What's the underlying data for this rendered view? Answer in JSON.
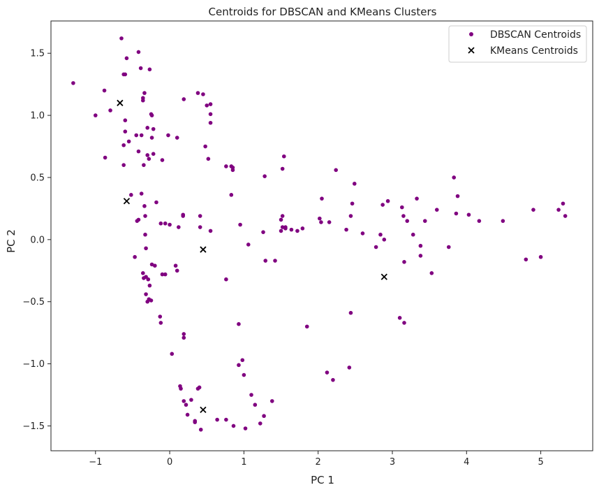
{
  "chart_data": {
    "type": "scatter",
    "title": "Centroids for DBSCAN and KMeans Clusters",
    "xlabel": "PC 1",
    "ylabel": "PC 2",
    "xlim": [
      -1.6,
      5.7
    ],
    "ylim": [
      -1.7,
      1.76
    ],
    "grid": false,
    "legend_position": "top-right",
    "x_ticks": [
      -1,
      0,
      1,
      2,
      3,
      4,
      5
    ],
    "x_tick_labels": [
      "−1",
      "0",
      "1",
      "2",
      "3",
      "4",
      "5"
    ],
    "y_ticks": [
      -1.5,
      -1.0,
      -0.5,
      0.0,
      0.5,
      1.0,
      1.5
    ],
    "y_tick_labels": [
      "−1.5",
      "−1.0",
      "−0.5",
      "0.0",
      "0.5",
      "1.0",
      "1.5"
    ],
    "series": [
      {
        "name": "DBSCAN Centroids",
        "marker": "circle",
        "color": "#800080",
        "points": [
          [
            -1.3,
            1.26
          ],
          [
            -1.0,
            1.0
          ],
          [
            -0.88,
            1.2
          ],
          [
            -0.8,
            1.04
          ],
          [
            -0.87,
            0.66
          ],
          [
            -0.65,
            1.62
          ],
          [
            -0.58,
            1.46
          ],
          [
            -0.62,
            1.33
          ],
          [
            -0.6,
            1.33
          ],
          [
            -0.42,
            1.51
          ],
          [
            -0.39,
            1.38
          ],
          [
            -0.27,
            1.37
          ],
          [
            -0.36,
            1.12
          ],
          [
            -0.36,
            1.14
          ],
          [
            -0.34,
            1.18
          ],
          [
            -0.25,
            1.01
          ],
          [
            -0.24,
            1.0
          ],
          [
            -0.3,
            0.9
          ],
          [
            -0.22,
            0.89
          ],
          [
            -0.6,
            0.96
          ],
          [
            -0.45,
            0.84
          ],
          [
            -0.38,
            0.84
          ],
          [
            -0.6,
            0.87
          ],
          [
            -0.55,
            0.79
          ],
          [
            -0.62,
            0.76
          ],
          [
            -0.42,
            0.71
          ],
          [
            -0.3,
            0.68
          ],
          [
            -0.24,
            0.82
          ],
          [
            -0.22,
            0.69
          ],
          [
            -0.28,
            0.65
          ],
          [
            -0.35,
            0.6
          ],
          [
            -0.62,
            0.6
          ],
          [
            -0.1,
            0.64
          ],
          [
            0.1,
            0.82
          ],
          [
            -0.02,
            0.84
          ],
          [
            0.19,
            1.13
          ],
          [
            0.38,
            1.18
          ],
          [
            0.45,
            1.17
          ],
          [
            0.5,
            1.08
          ],
          [
            0.55,
            1.09
          ],
          [
            0.55,
            1.01
          ],
          [
            0.55,
            0.94
          ],
          [
            0.48,
            0.75
          ],
          [
            0.52,
            0.65
          ],
          [
            -0.52,
            0.36
          ],
          [
            -0.38,
            0.37
          ],
          [
            -0.34,
            0.27
          ],
          [
            -0.18,
            0.3
          ],
          [
            -0.33,
            0.19
          ],
          [
            -0.42,
            0.16
          ],
          [
            -0.44,
            0.15
          ],
          [
            -0.12,
            0.13
          ],
          [
            -0.06,
            0.13
          ],
          [
            0.0,
            0.12
          ],
          [
            0.12,
            0.1
          ],
          [
            0.18,
            0.2
          ],
          [
            0.18,
            0.19
          ],
          [
            0.41,
            0.19
          ],
          [
            0.41,
            0.1
          ],
          [
            0.55,
            0.07
          ],
          [
            -0.33,
            0.04
          ],
          [
            -0.47,
            -0.14
          ],
          [
            -0.32,
            -0.07
          ],
          [
            -0.24,
            -0.2
          ],
          [
            -0.2,
            -0.21
          ],
          [
            -0.36,
            -0.27
          ],
          [
            -0.35,
            -0.31
          ],
          [
            -0.32,
            -0.3
          ],
          [
            -0.29,
            -0.32
          ],
          [
            -0.27,
            -0.37
          ],
          [
            -0.1,
            -0.28
          ],
          [
            -0.06,
            -0.28
          ],
          [
            0.08,
            -0.21
          ],
          [
            0.1,
            -0.25
          ],
          [
            -0.32,
            -0.44
          ],
          [
            -0.28,
            -0.48
          ],
          [
            -0.25,
            -0.49
          ],
          [
            -0.3,
            -0.5
          ],
          [
            -0.13,
            -0.62
          ],
          [
            -0.12,
            -0.67
          ],
          [
            0.19,
            -0.76
          ],
          [
            0.19,
            -0.79
          ],
          [
            0.03,
            -0.92
          ],
          [
            0.76,
            0.59
          ],
          [
            0.83,
            0.59
          ],
          [
            0.85,
            0.58
          ],
          [
            0.85,
            0.56
          ],
          [
            0.83,
            0.36
          ],
          [
            0.95,
            0.12
          ],
          [
            1.06,
            -0.04
          ],
          [
            0.76,
            -0.32
          ],
          [
            0.93,
            -0.68
          ],
          [
            1.26,
            0.06
          ],
          [
            1.28,
            0.51
          ],
          [
            1.29,
            -0.17
          ],
          [
            1.42,
            -0.17
          ],
          [
            1.52,
            0.57
          ],
          [
            1.54,
            0.67
          ],
          [
            1.5,
            0.16
          ],
          [
            1.52,
            0.19
          ],
          [
            1.52,
            0.1
          ],
          [
            1.5,
            0.07
          ],
          [
            1.56,
            0.1
          ],
          [
            1.56,
            0.09
          ],
          [
            1.64,
            0.08
          ],
          [
            1.72,
            0.07
          ],
          [
            1.79,
            0.09
          ],
          [
            1.85,
            -0.7
          ],
          [
            2.02,
            0.17
          ],
          [
            2.04,
            0.14
          ],
          [
            2.05,
            0.33
          ],
          [
            2.15,
            0.14
          ],
          [
            2.24,
            0.56
          ],
          [
            2.38,
            0.08
          ],
          [
            2.44,
            0.19
          ],
          [
            2.46,
            0.29
          ],
          [
            2.49,
            0.45
          ],
          [
            2.6,
            0.05
          ],
          [
            2.44,
            -0.59
          ],
          [
            2.78,
            -0.06
          ],
          [
            2.84,
            0.04
          ],
          [
            2.87,
            0.28
          ],
          [
            2.94,
            0.31
          ],
          [
            2.89,
            0.0
          ],
          [
            3.13,
            0.26
          ],
          [
            3.15,
            0.19
          ],
          [
            3.2,
            0.15
          ],
          [
            3.28,
            0.04
          ],
          [
            3.33,
            0.33
          ],
          [
            3.38,
            -0.05
          ],
          [
            3.38,
            -0.13
          ],
          [
            3.16,
            -0.18
          ],
          [
            3.44,
            0.15
          ],
          [
            3.53,
            -0.27
          ],
          [
            3.6,
            0.24
          ],
          [
            3.76,
            -0.06
          ],
          [
            3.83,
            0.5
          ],
          [
            3.88,
            0.35
          ],
          [
            3.86,
            0.21
          ],
          [
            4.03,
            0.2
          ],
          [
            4.17,
            0.15
          ],
          [
            4.49,
            0.15
          ],
          [
            4.8,
            -0.16
          ],
          [
            4.9,
            0.24
          ],
          [
            5.0,
            -0.14
          ],
          [
            5.24,
            0.24
          ],
          [
            5.3,
            0.29
          ],
          [
            5.33,
            0.19
          ],
          [
            3.1,
            -0.63
          ],
          [
            3.16,
            -0.67
          ],
          [
            2.12,
            -1.07
          ],
          [
            2.2,
            -1.13
          ],
          [
            2.42,
            -1.03
          ],
          [
            0.93,
            -1.01
          ],
          [
            0.98,
            -0.97
          ],
          [
            1.0,
            -1.09
          ],
          [
            1.1,
            -1.25
          ],
          [
            1.15,
            -1.33
          ],
          [
            1.27,
            -1.42
          ],
          [
            1.22,
            -1.48
          ],
          [
            1.38,
            -1.3
          ],
          [
            0.86,
            -1.5
          ],
          [
            0.76,
            -1.45
          ],
          [
            0.64,
            -1.45
          ],
          [
            1.02,
            -1.52
          ],
          [
            0.42,
            -1.53
          ],
          [
            0.34,
            -1.47
          ],
          [
            0.34,
            -1.46
          ],
          [
            0.24,
            -1.41
          ],
          [
            0.22,
            -1.33
          ],
          [
            0.29,
            -1.29
          ],
          [
            0.19,
            -1.3
          ],
          [
            0.14,
            -1.18
          ],
          [
            0.15,
            -1.2
          ],
          [
            0.38,
            -1.2
          ],
          [
            0.4,
            -1.19
          ]
        ]
      },
      {
        "name": "KMeans Centroids",
        "marker": "x",
        "color": "#000000",
        "points": [
          [
            -0.67,
            1.1
          ],
          [
            -0.58,
            0.31
          ],
          [
            0.45,
            -0.08
          ],
          [
            2.89,
            -0.3
          ],
          [
            0.45,
            -1.37
          ]
        ]
      }
    ]
  }
}
